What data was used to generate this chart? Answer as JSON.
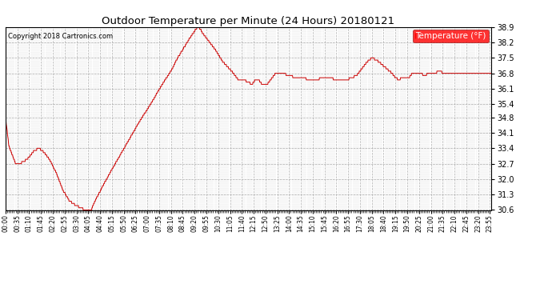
{
  "title": "Outdoor Temperature per Minute (24 Hours) 20180121",
  "copyright": "Copyright 2018 Cartronics.com",
  "legend_label": "Temperature (°F)",
  "line_color": "#cc0000",
  "background_color": "#ffffff",
  "grid_color": "#999999",
  "ylim": [
    30.6,
    38.9
  ],
  "yticks": [
    30.6,
    31.3,
    32.0,
    32.7,
    33.4,
    34.1,
    34.8,
    35.4,
    36.1,
    36.8,
    37.5,
    38.2,
    38.9
  ],
  "x_tick_interval": 35,
  "x_labels": [
    "00:00",
    "00:35",
    "01:10",
    "01:45",
    "02:20",
    "02:55",
    "03:30",
    "04:05",
    "04:40",
    "05:15",
    "05:50",
    "06:25",
    "07:00",
    "07:35",
    "08:10",
    "08:45",
    "09:20",
    "09:55",
    "10:30",
    "11:05",
    "11:40",
    "12:15",
    "12:50",
    "13:25",
    "14:00",
    "14:35",
    "15:10",
    "15:45",
    "16:20",
    "16:55",
    "17:30",
    "18:05",
    "18:40",
    "19:15",
    "19:50",
    "20:25",
    "21:00",
    "21:35",
    "22:10",
    "22:45",
    "23:20",
    "23:55"
  ],
  "data_keypoints": [
    [
      0,
      34.8
    ],
    [
      10,
      33.5
    ],
    [
      30,
      32.7
    ],
    [
      40,
      32.7
    ],
    [
      55,
      32.8
    ],
    [
      70,
      33.0
    ],
    [
      85,
      33.3
    ],
    [
      100,
      33.4
    ],
    [
      115,
      33.2
    ],
    [
      130,
      32.9
    ],
    [
      150,
      32.3
    ],
    [
      170,
      31.5
    ],
    [
      190,
      31.0
    ],
    [
      210,
      30.8
    ],
    [
      230,
      30.65
    ],
    [
      245,
      30.6
    ],
    [
      255,
      30.65
    ],
    [
      265,
      31.0
    ],
    [
      285,
      31.6
    ],
    [
      310,
      32.3
    ],
    [
      340,
      33.1
    ],
    [
      370,
      33.9
    ],
    [
      400,
      34.7
    ],
    [
      430,
      35.4
    ],
    [
      460,
      36.2
    ],
    [
      490,
      36.9
    ],
    [
      510,
      37.5
    ],
    [
      530,
      38.0
    ],
    [
      550,
      38.5
    ],
    [
      560,
      38.7
    ],
    [
      568,
      38.9
    ],
    [
      575,
      38.85
    ],
    [
      585,
      38.6
    ],
    [
      600,
      38.3
    ],
    [
      620,
      37.9
    ],
    [
      645,
      37.3
    ],
    [
      670,
      36.9
    ],
    [
      690,
      36.5
    ],
    [
      705,
      36.5
    ],
    [
      720,
      36.4
    ],
    [
      730,
      36.3
    ],
    [
      740,
      36.5
    ],
    [
      750,
      36.5
    ],
    [
      760,
      36.3
    ],
    [
      775,
      36.3
    ],
    [
      785,
      36.5
    ],
    [
      800,
      36.8
    ],
    [
      820,
      36.8
    ],
    [
      840,
      36.7
    ],
    [
      860,
      36.6
    ],
    [
      880,
      36.6
    ],
    [
      900,
      36.5
    ],
    [
      920,
      36.5
    ],
    [
      940,
      36.6
    ],
    [
      960,
      36.6
    ],
    [
      980,
      36.5
    ],
    [
      1000,
      36.5
    ],
    [
      1010,
      36.5
    ],
    [
      1040,
      36.7
    ],
    [
      1055,
      37.0
    ],
    [
      1070,
      37.3
    ],
    [
      1085,
      37.5
    ],
    [
      1100,
      37.4
    ],
    [
      1115,
      37.2
    ],
    [
      1130,
      37.0
    ],
    [
      1145,
      36.8
    ],
    [
      1155,
      36.6
    ],
    [
      1165,
      36.5
    ],
    [
      1175,
      36.6
    ],
    [
      1195,
      36.6
    ],
    [
      1205,
      36.8
    ],
    [
      1215,
      36.8
    ],
    [
      1225,
      36.85
    ],
    [
      1240,
      36.7
    ],
    [
      1255,
      36.8
    ],
    [
      1270,
      36.8
    ],
    [
      1285,
      36.9
    ],
    [
      1300,
      36.8
    ],
    [
      1320,
      36.8
    ],
    [
      1350,
      36.8
    ],
    [
      1380,
      36.8
    ],
    [
      1410,
      36.8
    ],
    [
      1439,
      36.8
    ]
  ]
}
